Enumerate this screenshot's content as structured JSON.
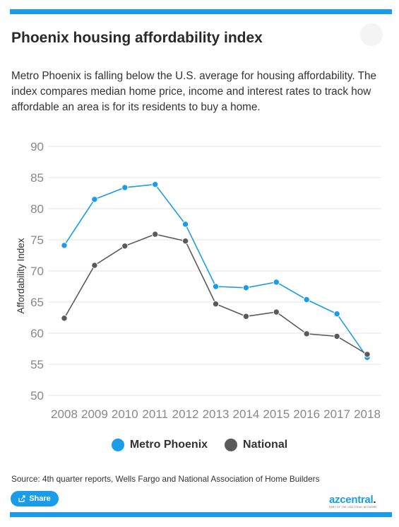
{
  "header": {
    "title": "Phoenix housing affordability index",
    "description": "Metro Phoenix is falling below the U.S. average for housing affordability. The index compares median home price, income and interest rates to track how affordable an area is for its residents to buy a home."
  },
  "chart_data": {
    "type": "line",
    "title": "",
    "xlabel": "",
    "ylabel": "Affordability Index",
    "ylim": [
      50,
      90
    ],
    "yticks": [
      90,
      85,
      80,
      75,
      70,
      65,
      60,
      55,
      50
    ],
    "grid": true,
    "legend_position": "bottom",
    "categories": [
      "2008",
      "2009",
      "2010",
      "2011",
      "2012",
      "2013",
      "2014",
      "2015",
      "2016",
      "2017",
      "2018"
    ],
    "series": [
      {
        "name": "Metro Phoenix",
        "color": "#1a9ce8",
        "values": [
          74.1,
          81.5,
          83.4,
          83.9,
          77.5,
          67.5,
          67.3,
          68.2,
          65.4,
          63.1,
          56.1
        ]
      },
      {
        "name": "National",
        "color": "#5a5a5a",
        "values": [
          62.4,
          70.9,
          74.0,
          75.9,
          74.8,
          64.7,
          62.7,
          63.4,
          59.9,
          59.5,
          56.6
        ]
      }
    ]
  },
  "footer": {
    "source": "Source: 4th quarter reports, Wells Fargo and National Association of Home Builders",
    "share_label": "Share",
    "logo_text": "azcentral",
    "logo_dot": ".",
    "logo_tagline": "PART OF THE USA TODAY NETWORK"
  },
  "colors": {
    "accent": "#1a9ce8"
  }
}
